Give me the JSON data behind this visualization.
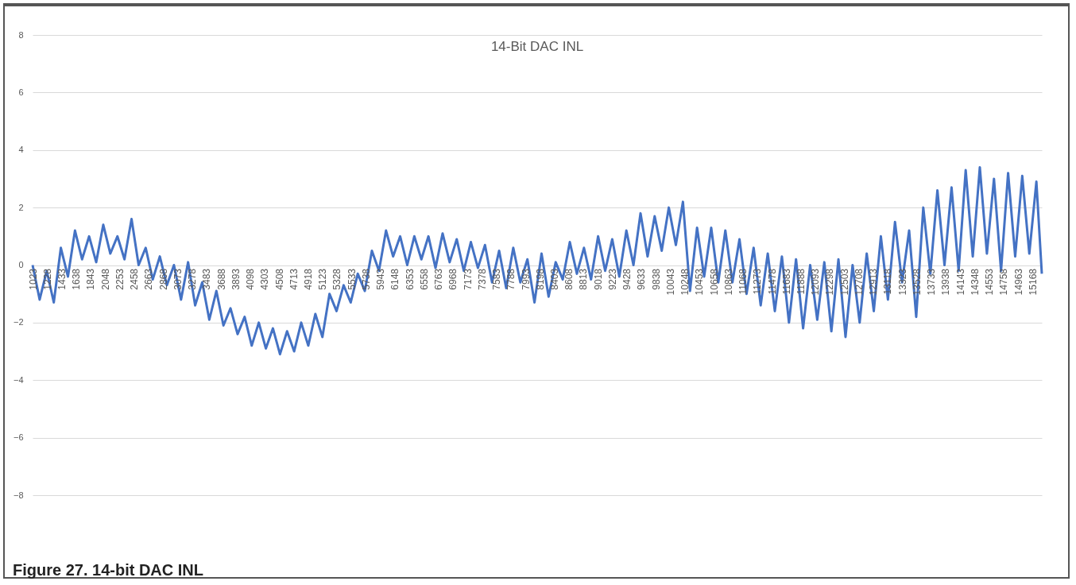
{
  "chart_data": {
    "type": "line",
    "title": "14-Bit DAC INL",
    "annotations": [
      "Figure 27.  14-bit DAC INL"
    ],
    "x": [
      1023,
      1123,
      1223,
      1323,
      1423,
      1523,
      1623,
      1723,
      1823,
      1923,
      2023,
      2123,
      2223,
      2323,
      2423,
      2523,
      2623,
      2723,
      2823,
      2923,
      3023,
      3123,
      3223,
      3323,
      3423,
      3523,
      3623,
      3723,
      3823,
      3923,
      4023,
      4123,
      4223,
      4323,
      4423,
      4523,
      4623,
      4723,
      4823,
      4923,
      5023,
      5123,
      5223,
      5323,
      5423,
      5523,
      5623,
      5723,
      5823,
      5923,
      6023,
      6123,
      6223,
      6323,
      6423,
      6523,
      6623,
      6723,
      6823,
      6923,
      7023,
      7123,
      7223,
      7323,
      7423,
      7523,
      7623,
      7723,
      7823,
      7923,
      8023,
      8123,
      8223,
      8323,
      8423,
      8523,
      8623,
      8723,
      8823,
      8923,
      9023,
      9123,
      9223,
      9323,
      9423,
      9523,
      9623,
      9723,
      9823,
      9923,
      10023,
      10123,
      10223,
      10323,
      10423,
      10523,
      10623,
      10723,
      10823,
      10923,
      11023,
      11123,
      11223,
      11323,
      11423,
      11523,
      11623,
      11723,
      11823,
      11923,
      12023,
      12123,
      12223,
      12323,
      12423,
      12523,
      12623,
      12723,
      12823,
      12923,
      13023,
      13123,
      13223,
      13323,
      13423,
      13523,
      13623,
      13723,
      13823,
      13923,
      14023,
      14123,
      14223,
      14323,
      14423,
      14523,
      14623,
      14723,
      14823,
      14923,
      15023,
      15123,
      15223,
      15300
    ],
    "series": [
      {
        "color": "#4472c4",
        "values": [
          0,
          -1.2,
          -0.2,
          -1.3,
          0.6,
          -0.4,
          1.2,
          0.2,
          1.0,
          0.1,
          1.4,
          0.4,
          1.0,
          0.2,
          1.6,
          0.0,
          0.6,
          -0.5,
          0.3,
          -0.7,
          0.0,
          -1.2,
          0.1,
          -1.4,
          -0.6,
          -1.9,
          -0.9,
          -2.1,
          -1.5,
          -2.4,
          -1.8,
          -2.8,
          -2.0,
          -2.9,
          -2.2,
          -3.1,
          -2.3,
          -3.0,
          -2.0,
          -2.8,
          -1.7,
          -2.5,
          -1.0,
          -1.6,
          -0.7,
          -1.3,
          -0.3,
          -0.9,
          0.5,
          -0.2,
          1.2,
          0.3,
          1.0,
          0.0,
          1.0,
          0.2,
          1.0,
          -0.1,
          1.1,
          0.1,
          0.9,
          -0.2,
          0.8,
          -0.1,
          0.7,
          -0.6,
          0.5,
          -0.8,
          0.6,
          -0.6,
          0.2,
          -1.3,
          0.4,
          -1.1,
          0.1,
          -0.5,
          0.8,
          -0.3,
          0.6,
          -0.5,
          1.0,
          -0.2,
          0.9,
          -0.4,
          1.2,
          0.0,
          1.8,
          0.3,
          1.7,
          0.5,
          2.0,
          0.7,
          2.2,
          -0.9,
          1.3,
          -0.4,
          1.3,
          -0.6,
          1.2,
          -0.6,
          0.9,
          -1.0,
          0.6,
          -1.4,
          0.4,
          -1.6,
          0.3,
          -2.0,
          0.2,
          -2.2,
          0.0,
          -1.9,
          0.1,
          -2.3,
          0.2,
          -2.5,
          0.0,
          -2.0,
          0.4,
          -1.6,
          1.0,
          -1.2,
          1.5,
          -0.6,
          1.2,
          -1.8,
          2.0,
          -0.3,
          2.6,
          0.0,
          2.7,
          -0.2,
          3.3,
          0.3,
          3.4,
          0.4,
          3.0,
          -0.2,
          3.2,
          0.3,
          3.1,
          0.4,
          2.9,
          -0.3
        ]
      }
    ],
    "xlim": [
      1023,
      15300
    ],
    "xticks": [
      1023,
      1228,
      1433,
      1638,
      1843,
      2048,
      2253,
      2458,
      2663,
      2868,
      3073,
      3278,
      3483,
      3688,
      3893,
      4098,
      4303,
      4508,
      4713,
      4918,
      5123,
      5328,
      5533,
      5738,
      5943,
      6148,
      6353,
      6558,
      6763,
      6968,
      7173,
      7378,
      7583,
      7788,
      7993,
      8198,
      8403,
      8608,
      8813,
      9018,
      9223,
      9428,
      9633,
      9838,
      10043,
      10248,
      10453,
      10658,
      10863,
      11068,
      11273,
      11478,
      11683,
      11888,
      12093,
      12298,
      12503,
      12708,
      12913,
      13118,
      13323,
      13528,
      13733,
      13938,
      14143,
      14348,
      14553,
      14758,
      14963,
      15168
    ],
    "ylim": [
      -8,
      8
    ],
    "yticks": [
      -8,
      -6,
      -4,
      -2,
      0,
      2,
      4,
      6,
      8
    ],
    "grid": "y",
    "legend": false
  }
}
